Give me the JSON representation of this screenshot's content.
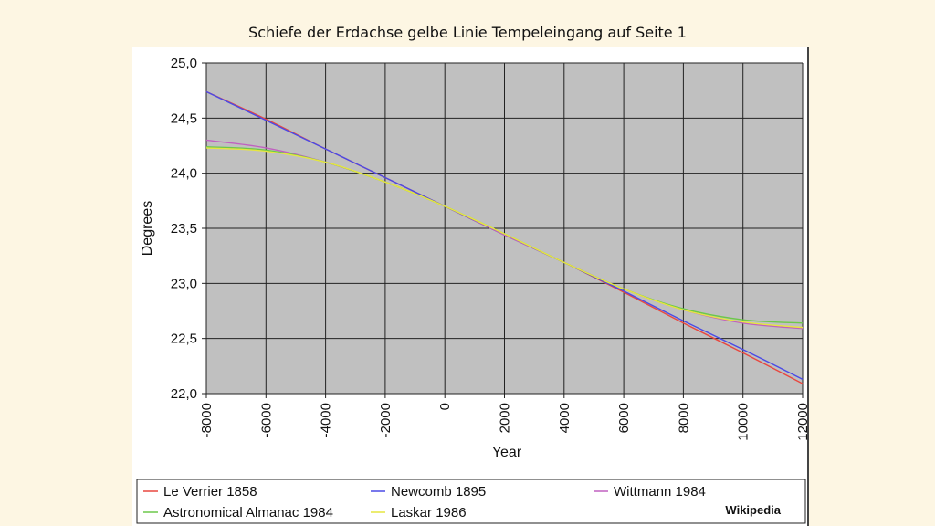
{
  "page": {
    "title": "Schiefe der Erdachse gelbe Linie Tempeleingang auf Seite 1"
  },
  "chart_data": {
    "type": "line",
    "title": "",
    "xlabel": "Year",
    "ylabel": "Degrees",
    "xlim": [
      -8000,
      12000
    ],
    "ylim": [
      22.0,
      25.0
    ],
    "grid": true,
    "legend_position": "bottom",
    "x_ticks": [
      "-8000",
      "-6000",
      "-4000",
      "-2000",
      "0",
      "2000",
      "4000",
      "6000",
      "8000",
      "10000",
      "12000"
    ],
    "y_ticks": [
      "22,0",
      "22,5",
      "23,0",
      "23,5",
      "24,0",
      "24,5",
      "25,0"
    ],
    "x": [
      -8000,
      -6000,
      -4000,
      -2000,
      0,
      2000,
      4000,
      6000,
      8000,
      10000,
      12000
    ],
    "series": [
      {
        "name": "Le Verrier 1858",
        "color": "#e8473f",
        "values": [
          24.74,
          24.49,
          24.22,
          23.96,
          23.7,
          23.44,
          23.19,
          22.92,
          22.64,
          22.37,
          22.09
        ]
      },
      {
        "name": "Newcomb 1895",
        "color": "#4a4ae6",
        "values": [
          24.74,
          24.48,
          24.22,
          23.96,
          23.7,
          23.44,
          23.19,
          22.93,
          22.66,
          22.4,
          22.13
        ]
      },
      {
        "name": "Wittmann 1984",
        "color": "#c060c0",
        "values": [
          24.3,
          24.23,
          24.1,
          23.92,
          23.7,
          23.44,
          23.19,
          22.95,
          22.76,
          22.64,
          22.59
        ]
      },
      {
        "name": "Astronomical Almanac 1984",
        "color": "#6cc84a",
        "values": [
          24.24,
          24.21,
          24.1,
          23.92,
          23.7,
          23.45,
          23.19,
          22.95,
          22.77,
          22.67,
          22.64
        ]
      },
      {
        "name": "Laskar 1986",
        "color": "#e6e640",
        "values": [
          24.23,
          24.2,
          24.1,
          23.92,
          23.7,
          23.45,
          23.19,
          22.95,
          22.76,
          22.65,
          22.6
        ]
      }
    ],
    "source_label": "Wikipedia"
  }
}
